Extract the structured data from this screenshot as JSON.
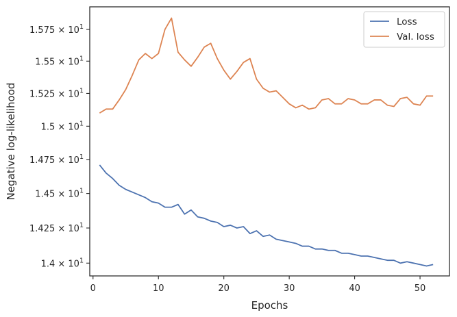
{
  "chart_data": {
    "type": "line",
    "title": "",
    "xlabel": "Epochs",
    "ylabel": "Negative log-likelihood",
    "xlim": [
      -0.5,
      54.5
    ],
    "ylim": [
      13.91,
      15.93
    ],
    "x_ticks": [
      0,
      10,
      20,
      30,
      40,
      50
    ],
    "x_tick_labels": [
      "0",
      "10",
      "20",
      "30",
      "40",
      "50"
    ],
    "y_scale": "log",
    "y_ticks": [
      14.0,
      14.25,
      14.5,
      14.75,
      15.0,
      15.25,
      15.5,
      15.75
    ],
    "y_tick_labels": [
      {
        "mantissa": "1.4",
        "exp": "1"
      },
      {
        "mantissa": "1.425",
        "exp": "1"
      },
      {
        "mantissa": "1.45",
        "exp": "1"
      },
      {
        "mantissa": "1.475",
        "exp": "1"
      },
      {
        "mantissa": "1.5",
        "exp": "1"
      },
      {
        "mantissa": "1.525",
        "exp": "1"
      },
      {
        "mantissa": "1.55",
        "exp": "1"
      },
      {
        "mantissa": "1.575",
        "exp": "1"
      }
    ],
    "legend_position": "top-right",
    "grid": false,
    "x": [
      1,
      2,
      3,
      4,
      5,
      6,
      7,
      8,
      9,
      10,
      11,
      12,
      13,
      14,
      15,
      16,
      17,
      18,
      19,
      20,
      21,
      22,
      23,
      24,
      25,
      26,
      27,
      28,
      29,
      30,
      31,
      32,
      33,
      34,
      35,
      36,
      37,
      38,
      39,
      40,
      41,
      42,
      43,
      44,
      45,
      46,
      47,
      48,
      49,
      50,
      51,
      52
    ],
    "series": [
      {
        "name": "Loss",
        "color": "#4c72b0",
        "values": [
          14.71,
          14.65,
          14.61,
          14.56,
          14.53,
          14.51,
          14.49,
          14.47,
          14.44,
          14.43,
          14.4,
          14.4,
          14.42,
          14.35,
          14.38,
          14.33,
          14.32,
          14.3,
          14.29,
          14.26,
          14.27,
          14.25,
          14.26,
          14.21,
          14.23,
          14.19,
          14.2,
          14.17,
          14.16,
          14.15,
          14.14,
          14.12,
          14.12,
          14.1,
          14.1,
          14.09,
          14.09,
          14.07,
          14.07,
          14.06,
          14.05,
          14.05,
          14.04,
          14.03,
          14.02,
          14.02,
          14.0,
          14.01,
          14.0,
          13.99,
          13.98,
          13.99
        ]
      },
      {
        "name": "Val. loss",
        "color": "#dd8452",
        "values": [
          15.1,
          15.13,
          15.13,
          15.2,
          15.28,
          15.39,
          15.51,
          15.56,
          15.52,
          15.56,
          15.75,
          15.84,
          15.57,
          15.51,
          15.46,
          15.53,
          15.61,
          15.64,
          15.52,
          15.43,
          15.36,
          15.42,
          15.49,
          15.52,
          15.36,
          15.29,
          15.26,
          15.27,
          15.22,
          15.17,
          15.14,
          15.16,
          15.13,
          15.14,
          15.2,
          15.21,
          15.17,
          15.17,
          15.21,
          15.2,
          15.17,
          15.17,
          15.2,
          15.2,
          15.16,
          15.15,
          15.21,
          15.22,
          15.17,
          15.16,
          15.23,
          15.23
        ]
      }
    ]
  }
}
